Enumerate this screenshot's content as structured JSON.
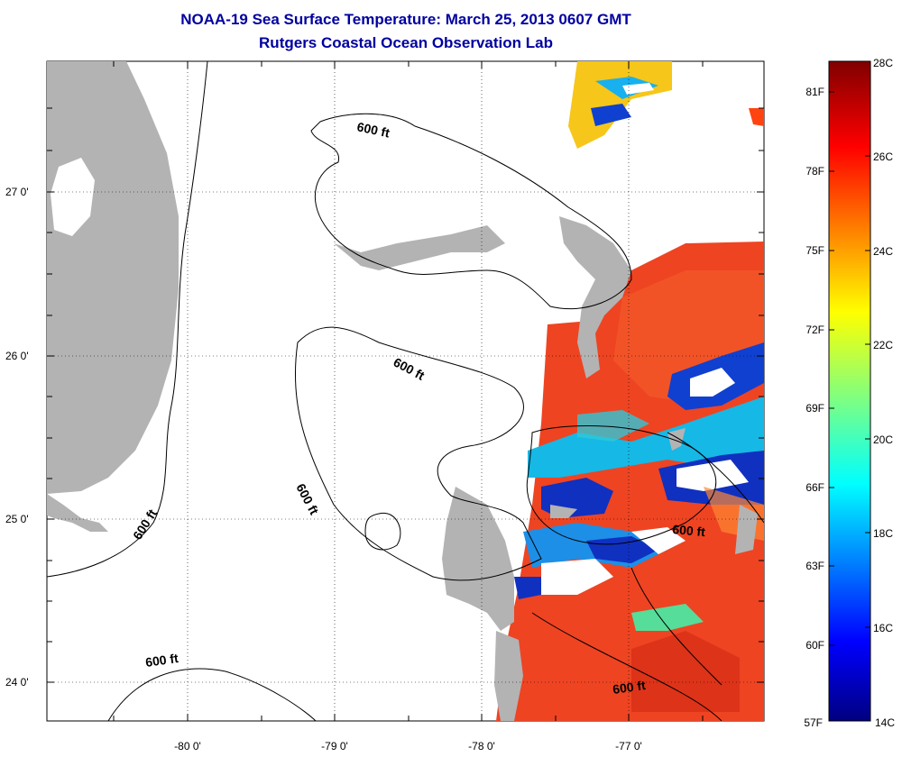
{
  "title": {
    "line1": "NOAA-19 Sea Surface Temperature:  March 25, 2013 0607 GMT",
    "line2": "Rutgers Coastal Ocean Observation Lab"
  },
  "axes": {
    "latitude_ticks": [
      "27 0'",
      "26 0'",
      "25 0'",
      "24 0'"
    ],
    "longitude_ticks": [
      "-80 0'",
      "-79 0'",
      "-78 0'",
      "-77 0'"
    ]
  },
  "contour_labels": [
    "600 ft",
    "600 ft",
    "600 ft",
    "600 ft",
    "600 ft",
    "600 ft"
  ],
  "colorbar": {
    "celsius": [
      "28C",
      "26C",
      "24C",
      "22C",
      "20C",
      "18C",
      "16C",
      "14C"
    ],
    "fahrenheit": [
      "81F",
      "78F",
      "75F",
      "72F",
      "69F",
      "66F",
      "63F",
      "60F",
      "57F"
    ],
    "range_c": [
      14,
      28
    ]
  },
  "colors": {
    "title": "#0000a0",
    "land": "#b3b3b3",
    "sst_warm": "#ee4422",
    "sst_cold": "#1030c0"
  }
}
